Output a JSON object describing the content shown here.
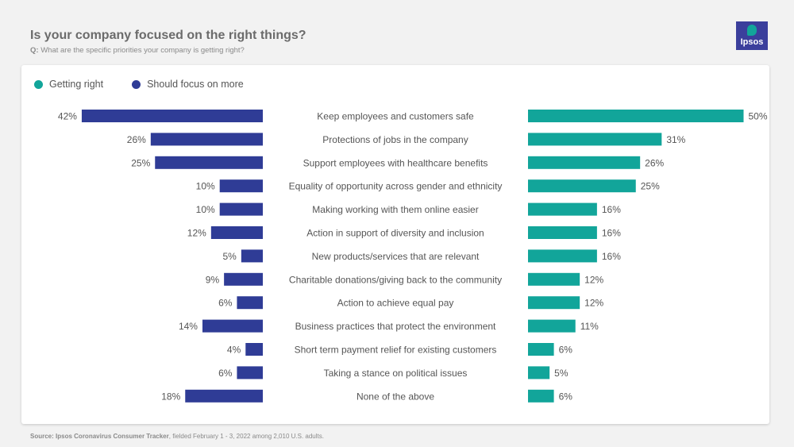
{
  "header": {
    "title": "Is your company focused on the right things?",
    "question_prefix": "Q:",
    "question": "What are the specific priorities your company is getting right?",
    "logo_text": "Ipsos"
  },
  "colors": {
    "getting_right": "#12a59a",
    "focus_more": "#2f3c96"
  },
  "footer": {
    "prefix": "Source:",
    "source": "Ipsos Coronavirus Consumer Tracker",
    "rest": ", fielded February 1 - 3, 2022 among 2,010 U.S. adults."
  },
  "chart_data": {
    "type": "bar",
    "orientation": "horizontal-butterfly",
    "legend": [
      "Getting right",
      "Should focus on more"
    ],
    "legend_position": "top-left",
    "unit": "%",
    "categories": [
      "Keep employees and customers safe",
      "Protections of jobs in the company",
      "Support employees with healthcare benefits",
      "Equality of opportunity across gender and ethnicity",
      "Making working with them online easier",
      "Action in support of diversity and inclusion",
      "New products/services that are relevant",
      "Charitable donations/giving back to the community",
      "Action to achieve equal pay",
      "Business practices that protect the environment",
      "Short term payment relief for existing customers",
      "Taking a stance on political issues",
      "None of the above"
    ],
    "series": [
      {
        "name": "Should focus on more",
        "side": "left",
        "values": [
          42,
          26,
          25,
          10,
          10,
          12,
          5,
          9,
          6,
          14,
          4,
          6,
          18
        ]
      },
      {
        "name": "Getting right",
        "side": "right",
        "values": [
          50,
          31,
          26,
          25,
          16,
          16,
          16,
          12,
          12,
          11,
          6,
          5,
          6
        ]
      }
    ]
  }
}
